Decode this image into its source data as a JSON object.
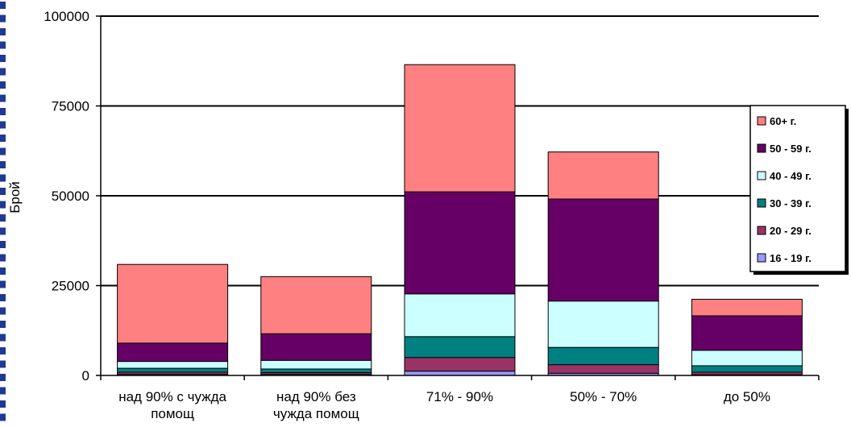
{
  "chart_data": {
    "type": "bar",
    "stacked": true,
    "categories": [
      "над 90% с чужда помощ",
      "над 90% без чужда помощ",
      "71% - 90%",
      "50% - 70%",
      "до 50%"
    ],
    "category_lines": [
      [
        "над 90% с чужда",
        "помощ"
      ],
      [
        "над 90% без",
        "чужда помощ"
      ],
      [
        "71% - 90%"
      ],
      [
        "50% - 70%"
      ],
      [
        "до 50%"
      ]
    ],
    "series": [
      {
        "name": "16 - 19 г.",
        "color": "#9999ff",
        "values": [
          300,
          300,
          1200,
          600,
          200
        ]
      },
      {
        "name": "20 - 29 г.",
        "color": "#993366",
        "values": [
          600,
          500,
          3800,
          2400,
          700
        ]
      },
      {
        "name": "30 - 39 г.",
        "color": "#008080",
        "values": [
          1100,
          1000,
          5800,
          4800,
          1800
        ]
      },
      {
        "name": "40 - 49 г.",
        "color": "#ccffff",
        "values": [
          1900,
          2400,
          11900,
          12900,
          4300
        ]
      },
      {
        "name": "50 - 59 г.",
        "color": "#660066",
        "values": [
          5100,
          7400,
          28400,
          28400,
          9600
        ]
      },
      {
        "name": "60+ г.",
        "color": "#ff8080",
        "values": [
          21900,
          15900,
          35400,
          13100,
          4600
        ]
      }
    ],
    "ylabel": "Брой",
    "xlabel": "",
    "ylim": [
      0,
      100000
    ],
    "yticks": [
      0,
      25000,
      50000,
      75000,
      100000
    ],
    "ytick_labels": [
      "0",
      "25000",
      "50000",
      "75000",
      "100000"
    ],
    "grid": true,
    "legend_position": "right",
    "legend_order": [
      "60+ г.",
      "50 - 59 г.",
      "40 - 49 г.",
      "30 - 39 г.",
      "20 - 29 г.",
      "16 - 19 г."
    ]
  },
  "decor": {
    "left_border_color": "#1f3a93"
  }
}
